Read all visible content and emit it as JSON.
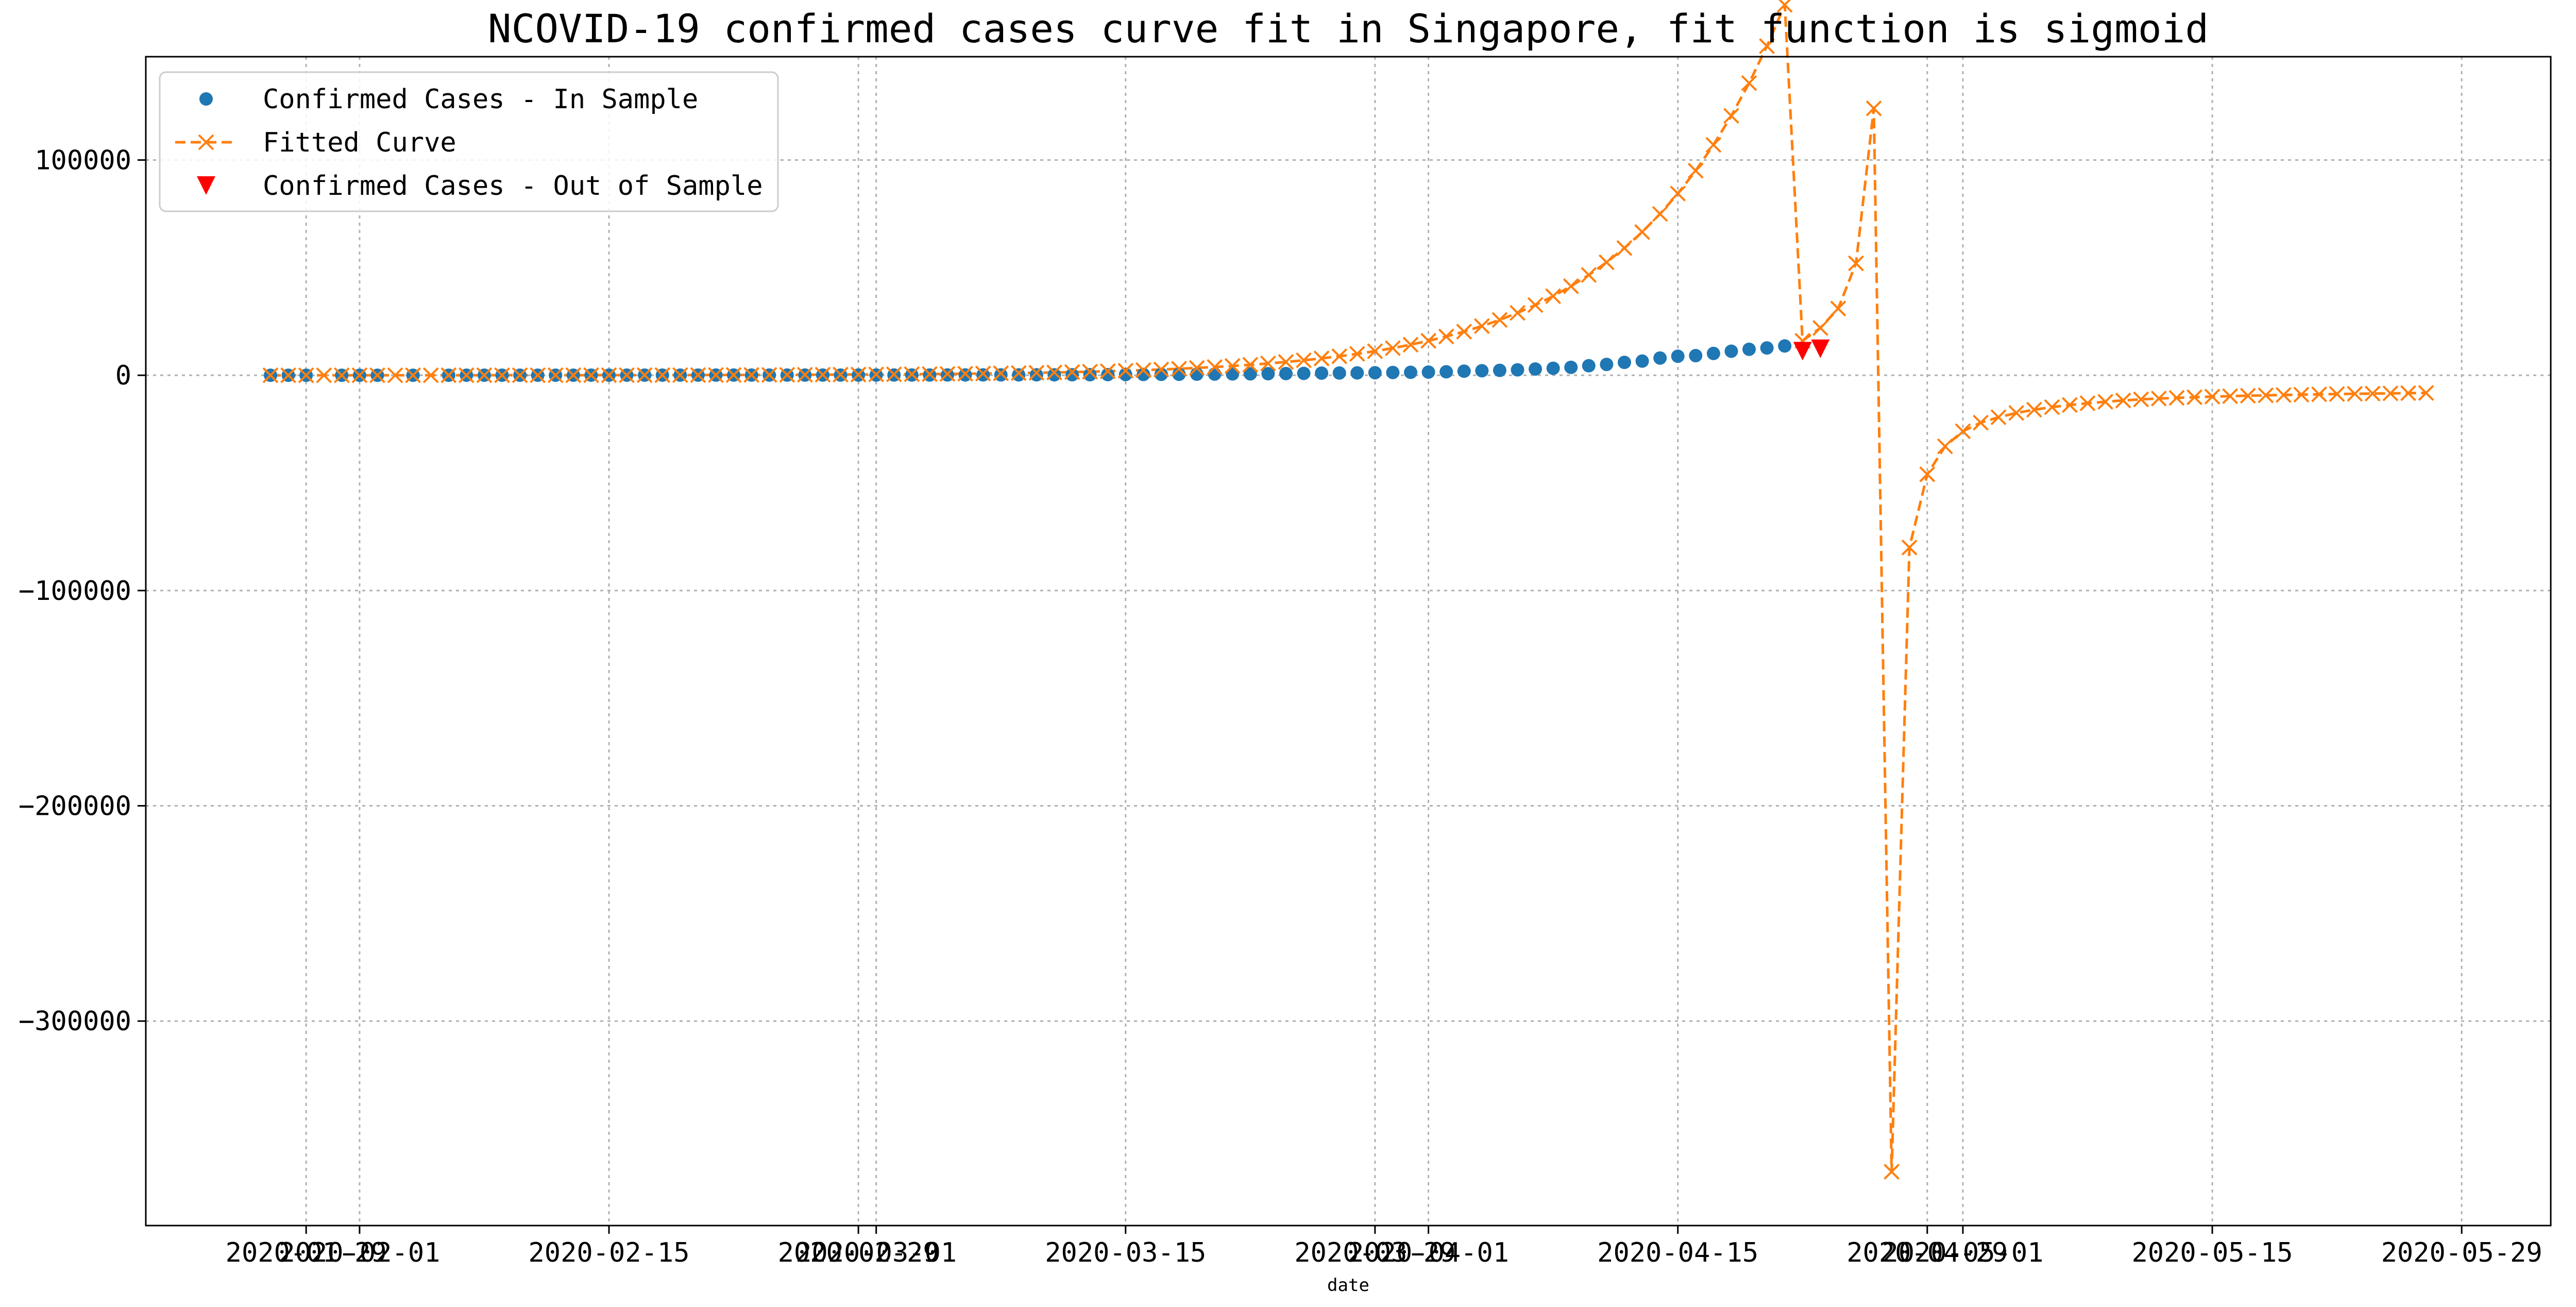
{
  "chart_data": {
    "type": "line",
    "title": "NCOVID-19 confirmed cases curve fit in Singapore, fit function is sigmoid",
    "xlabel": "date",
    "ylabel": "",
    "ylim": [
      -395000,
      148000
    ],
    "grid": true,
    "legend_placement": "top-left",
    "x_ticks": [
      {
        "label": "2020-01-29",
        "day": 7
      },
      {
        "label": "2020-02-01",
        "day": 10
      },
      {
        "label": "2020-02-15",
        "day": 24
      },
      {
        "label": "2020-02-29",
        "day": 38
      },
      {
        "label": "2020-03-01",
        "day": 39
      },
      {
        "label": "2020-03-15",
        "day": 53
      },
      {
        "label": "2020-03-29",
        "day": 67
      },
      {
        "label": "2020-04-01",
        "day": 70
      },
      {
        "label": "2020-04-15",
        "day": 84
      },
      {
        "label": "2020-04-29",
        "day": 98
      },
      {
        "label": "2020-05-01",
        "day": 100
      },
      {
        "label": "2020-05-15",
        "day": 114
      },
      {
        "label": "2020-05-29",
        "day": 128
      }
    ],
    "y_ticks": [
      {
        "label": "100000",
        "value": 100000
      },
      {
        "label": "0",
        "value": 0
      },
      {
        "label": "−100000",
        "value": -100000
      },
      {
        "label": "−200000",
        "value": -200000
      },
      {
        "label": "−300000",
        "value": -300000
      }
    ],
    "series": [
      {
        "name": "Confirmed Cases - In Sample",
        "style": "dots",
        "color": "#1f77b4",
        "x": [
          5,
          6,
          7,
          9,
          10,
          11,
          13,
          15,
          16,
          17,
          18,
          19,
          20,
          21,
          22,
          23,
          24,
          25,
          26,
          27,
          28,
          29,
          30,
          31,
          32,
          33,
          34,
          35,
          36,
          37,
          38,
          39,
          40,
          41,
          42,
          43,
          44,
          45,
          46,
          47,
          48,
          49,
          50,
          51,
          52,
          53,
          54,
          55,
          56,
          57,
          58,
          59,
          60,
          61,
          62,
          63,
          64,
          65,
          66,
          67,
          68,
          69,
          70,
          71,
          72,
          73,
          74,
          75,
          76,
          77,
          78,
          79,
          80,
          81,
          82,
          83,
          84,
          85,
          86,
          87,
          88,
          89,
          90
        ],
        "y": [
          3,
          4,
          7,
          10,
          13,
          16,
          18,
          24,
          28,
          30,
          33,
          40,
          45,
          47,
          50,
          58,
          67,
          72,
          75,
          77,
          81,
          84,
          86,
          89,
          91,
          93,
          96,
          102,
          106,
          108,
          110,
          112,
          117,
          130,
          138,
          150,
          160,
          178,
          187,
          200,
          212,
          226,
          243,
          266,
          313,
          345,
          385,
          432,
          455,
          509,
          558,
          631,
          683,
          732,
          802,
          879,
          1000,
          1049,
          1114,
          1189,
          1309,
          1375,
          1481,
          1623,
          1910,
          2108,
          2299,
          2532,
          2918,
          3252,
          3699,
          4427,
          5050,
          5992,
          6588,
          8014,
          8842,
          9125,
          10141,
          11178,
          12075,
          12693,
          13624
        ]
      },
      {
        "name": "Fitted Curve",
        "style": "dashed-x",
        "color": "#ff7f0e",
        "x": [
          5,
          6,
          7,
          8,
          9,
          10,
          11,
          12,
          13,
          14,
          15,
          16,
          17,
          18,
          19,
          20,
          21,
          22,
          23,
          24,
          25,
          26,
          27,
          28,
          29,
          30,
          31,
          32,
          33,
          34,
          35,
          36,
          37,
          38,
          39,
          40,
          41,
          42,
          43,
          44,
          45,
          46,
          47,
          48,
          49,
          50,
          51,
          52,
          53,
          54,
          55,
          56,
          57,
          58,
          59,
          60,
          61,
          62,
          63,
          64,
          65,
          66,
          67,
          68,
          69,
          70,
          71,
          72,
          73,
          74,
          75,
          76,
          77,
          78,
          79,
          80,
          81,
          82,
          83,
          84,
          85,
          86,
          87,
          88,
          89,
          90,
          91,
          92,
          93,
          94,
          95,
          96,
          97,
          98,
          99,
          100,
          101,
          102,
          103,
          104,
          105,
          106,
          107,
          108,
          109,
          110,
          111,
          112,
          113,
          114,
          115,
          116,
          117,
          118,
          119,
          120,
          121,
          122,
          123,
          124,
          125,
          126
        ],
        "y": [
          2,
          3,
          4,
          5,
          6,
          8,
          9,
          11,
          13,
          15,
          18,
          21,
          24,
          28,
          32,
          37,
          42,
          48,
          55,
          62,
          71,
          81,
          91,
          104,
          117,
          133,
          150,
          170,
          192,
          217,
          245,
          277,
          313,
          353,
          398,
          449,
          506,
          570,
          643,
          725,
          817,
          921,
          1038,
          1170,
          1318,
          1484,
          1672,
          1883,
          2121,
          2389,
          2690,
          3030,
          3413,
          3843,
          4328,
          4874,
          5490,
          6182,
          6962,
          7840,
          8830,
          9944,
          11200,
          12614,
          14205,
          15998,
          18017,
          20290,
          22850,
          25732,
          28977,
          32632,
          36747,
          41383,
          46603,
          52480,
          59100,
          66554,
          74948,
          84400,
          95044,
          107030,
          120524,
          135730,
          152900,
          172100,
          16000,
          22000,
          31000,
          52000,
          124000,
          -370000,
          -80000,
          -46000,
          -33000,
          -26000,
          -22000,
          -19500,
          -17500,
          -16000,
          -14800,
          -13800,
          -13000,
          -12300,
          -11700,
          -11200,
          -10800,
          -10500,
          -10200,
          -9900,
          -9700,
          -9500,
          -9300,
          -9150,
          -9000,
          -8850,
          -8700,
          -8600,
          -8500,
          -8400,
          -8300,
          -8200
        ]
      },
      {
        "name": "Confirmed Cases - Out of Sample",
        "style": "triangle-down",
        "color": "#ff0000",
        "x": [
          91,
          92
        ],
        "y": [
          11200,
          12300
        ]
      }
    ]
  }
}
